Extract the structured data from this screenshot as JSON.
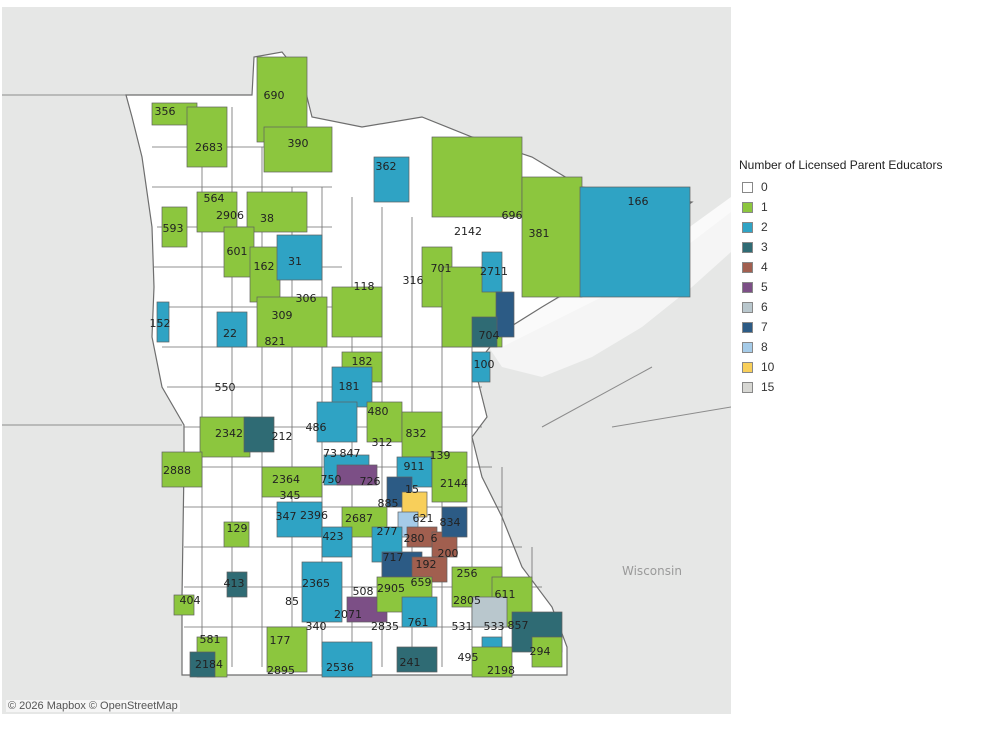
{
  "map": {
    "water_labels": {
      "wisconsin": "Wisconsin"
    },
    "attribution": "© 2026 Mapbox © OpenStreetMap",
    "district_labels": [
      "356",
      "690",
      "2683",
      "390",
      "362",
      "564",
      "2906",
      "38",
      "166",
      "593",
      "696",
      "2142",
      "381",
      "601",
      "162",
      "31",
      "2711",
      "316",
      "701",
      "118",
      "306",
      "309",
      "152",
      "22",
      "821",
      "704",
      "100",
      "182",
      "550",
      "181",
      "480",
      "486",
      "832",
      "2342",
      "212",
      "312",
      "139",
      "73",
      "847",
      "2888",
      "911",
      "726",
      "2364",
      "750",
      "2144",
      "15",
      "345",
      "885",
      "347",
      "2396",
      "2687",
      "621",
      "834",
      "129",
      "423",
      "277",
      "280",
      "6",
      "717",
      "192",
      "200",
      "413",
      "2365",
      "508",
      "2905",
      "659",
      "256",
      "404",
      "85",
      "2071",
      "2805",
      "611",
      "2835",
      "761",
      "531",
      "533",
      "857",
      "581",
      "340",
      "177",
      "294",
      "2184",
      "495",
      "241",
      "2895",
      "2536",
      "2198"
    ]
  },
  "legend": {
    "title": "Number of Licensed Parent Educators",
    "items": [
      {
        "label": "0",
        "color": "#ffffff"
      },
      {
        "label": "1",
        "color": "#8cc63e"
      },
      {
        "label": "2",
        "color": "#2fa3c4"
      },
      {
        "label": "3",
        "color": "#2f6b74"
      },
      {
        "label": "4",
        "color": "#a15f4f"
      },
      {
        "label": "5",
        "color": "#7c4f86"
      },
      {
        "label": "6",
        "color": "#b9c7cd"
      },
      {
        "label": "7",
        "color": "#2c5b85"
      },
      {
        "label": "8",
        "color": "#a5cbe8"
      },
      {
        "label": "10",
        "color": "#f8cf5a"
      },
      {
        "label": "15",
        "color": "#d7d7d3"
      }
    ]
  }
}
